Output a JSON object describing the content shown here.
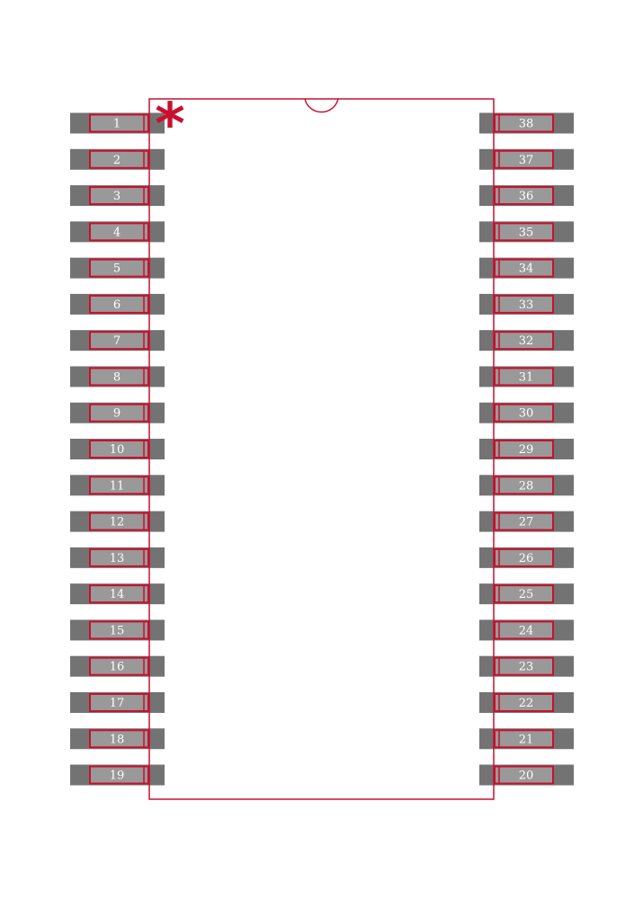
{
  "footprint": {
    "left_pins": [
      "1",
      "2",
      "3",
      "4",
      "5",
      "6",
      "7",
      "8",
      "9",
      "10",
      "11",
      "12",
      "13",
      "14",
      "15",
      "16",
      "17",
      "18",
      "19"
    ],
    "right_pins": [
      "38",
      "37",
      "36",
      "35",
      "34",
      "33",
      "32",
      "31",
      "30",
      "29",
      "28",
      "27",
      "26",
      "25",
      "24",
      "23",
      "22",
      "21",
      "20"
    ],
    "pin1_marker": "*",
    "colors": {
      "outline": "#c8102e",
      "pad_dark": "#737373",
      "pad_light": "#999999",
      "label": "#ffffff",
      "background": "#ffffff"
    }
  }
}
